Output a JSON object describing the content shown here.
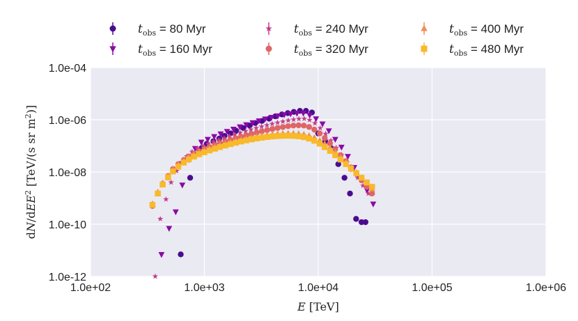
{
  "chart_data": {
    "type": "scatter",
    "xlabel": "E [TeV]",
    "ylabel": "dN/dE E^2 [TeV/(s sr m^2)]",
    "xscale": "log",
    "yscale": "log",
    "xlim": [
      100,
      1000000
    ],
    "ylim": [
      1e-12,
      0.0001
    ],
    "x_ticks": [
      "1.0e+02",
      "1.0e+03",
      "1.0e+04",
      "1.0e+05",
      "1.0e+06"
    ],
    "y_ticks": [
      "1.0e-12",
      "1.0e-10",
      "1.0e-08",
      "1.0e-06",
      "1.0e-04"
    ],
    "grid": true,
    "legend_position": "top",
    "series": [
      {
        "name": "t_obs = 80 Myr",
        "legend_value": "80 Myr",
        "color": "#4a0c8f",
        "marker": "circle",
        "x": [
          620,
          750,
          940,
          1050,
          1200,
          1350,
          1500,
          1700,
          1900,
          2200,
          2500,
          2800,
          3200,
          3700,
          4200,
          4800,
          5400,
          6100,
          6900,
          7800,
          8800,
          10000,
          11500,
          13000,
          15000,
          17000,
          19000,
          21500,
          24000,
          26000
        ],
        "y": [
          7e-12,
          6e-09,
          8e-08,
          1.2e-07,
          1.5e-07,
          1.9e-07,
          2.4e-07,
          3e-07,
          3.8e-07,
          4.8e-07,
          6e-07,
          7.5e-07,
          9e-07,
          1.1e-06,
          1.35e-06,
          1.6e-06,
          1.8e-06,
          2e-06,
          2.2e-06,
          2.2e-06,
          1.9e-06,
          3e-07,
          1.5e-07,
          8e-08,
          2e-08,
          6e-09,
          1.5e-09,
          1.6e-10,
          1.2e-10,
          1.2e-10
        ]
      },
      {
        "name": "t_obs = 160 Myr",
        "legend_value": "160 Myr",
        "color": "#8b0aa5",
        "marker": "triangle-down",
        "x": [
          420,
          490,
          560,
          640,
          730,
          830,
          940,
          1070,
          1220,
          1390,
          1580,
          1800,
          2050,
          2330,
          2650,
          3010,
          3420,
          3890,
          4420,
          5030,
          5720,
          6500,
          7390,
          8410,
          9560,
          10900,
          12400,
          14100,
          16000,
          18200,
          20700,
          23500,
          26800,
          30400
        ],
        "y": [
          7e-12,
          7e-11,
          3e-10,
          3.2e-09,
          3e-08,
          8e-08,
          1.4e-07,
          1.8e-07,
          2.3e-07,
          2.9e-07,
          3.6e-07,
          4.4e-07,
          5.4e-07,
          6.5e-07,
          7.8e-07,
          9.2e-07,
          1.08e-06,
          1.25e-06,
          1.42e-06,
          1.58e-06,
          1.7e-06,
          1.78e-06,
          1.8e-06,
          1.5e-06,
          1.1e-06,
          7e-07,
          3.8e-07,
          1.8e-07,
          9e-08,
          4e-08,
          1.5e-08,
          6e-09,
          2e-09,
          6e-10
        ]
      },
      {
        "name": "t_obs = 240 Myr",
        "legend_value": "240 Myr",
        "color": "#c43d8a",
        "marker": "star",
        "x": [
          370,
          410,
          460,
          510,
          570,
          630,
          700,
          780,
          870,
          970,
          1080,
          1200,
          1340,
          1490,
          1660,
          1850,
          2060,
          2300,
          2560,
          2850,
          3180,
          3540,
          3940,
          4390,
          4890,
          5450,
          6070,
          6760,
          7530,
          8390,
          9350,
          10400,
          11600,
          12900,
          14400,
          16000,
          17900,
          19900,
          22200,
          24700,
          27500
        ],
        "y": [
          1e-12,
          1.6e-10,
          9e-10,
          4e-09,
          1.1e-08,
          2.4e-08,
          4e-08,
          6e-08,
          8e-08,
          1e-07,
          1.2e-07,
          1.45e-07,
          1.7e-07,
          2e-07,
          2.35e-07,
          2.75e-07,
          3.2e-07,
          3.7e-07,
          4.25e-07,
          4.85e-07,
          5.5e-07,
          6.2e-07,
          7e-07,
          7.8e-07,
          8.6e-07,
          9.4e-07,
          1.02e-06,
          1.08e-06,
          1.1e-06,
          9.8e-07,
          7.4e-07,
          4.8e-07,
          2.9e-07,
          1.6e-07,
          8.5e-08,
          4.5e-08,
          2.3e-08,
          1.2e-08,
          6e-09,
          3e-09,
          1.5e-09
        ]
      },
      {
        "name": "t_obs = 320 Myr",
        "legend_value": "320 Myr",
        "color": "#df6566",
        "marker": "circle",
        "x": [
          350,
          390,
          430,
          480,
          530,
          590,
          660,
          730,
          810,
          900,
          1000,
          1110,
          1240,
          1370,
          1530,
          1700,
          1890,
          2100,
          2330,
          2590,
          2880,
          3200,
          3560,
          3960,
          4400,
          4890,
          5440,
          6050,
          6720,
          7470,
          8310,
          9240,
          10300,
          11400,
          12700,
          14100,
          15700,
          17500,
          19400,
          21600,
          24000,
          26700,
          29700
        ],
        "y": [
          5e-10,
          1.5e-09,
          3.5e-09,
          7e-09,
          1.3e-08,
          2e-08,
          2.9e-08,
          3.9e-08,
          5e-08,
          6.2e-08,
          7.5e-08,
          9e-08,
          1.07e-07,
          1.26e-07,
          1.47e-07,
          1.7e-07,
          1.96e-07,
          2.24e-07,
          2.55e-07,
          2.88e-07,
          3.24e-07,
          3.62e-07,
          4.02e-07,
          4.44e-07,
          4.86e-07,
          5.28e-07,
          5.68e-07,
          6e-07,
          6.15e-07,
          6e-07,
          5.3e-07,
          4.2e-07,
          3e-07,
          2e-07,
          1.25e-07,
          7.5e-08,
          4.4e-08,
          2.6e-08,
          1.5e-08,
          8.5e-09,
          4.8e-09,
          2.7e-09,
          1.5e-09
        ]
      },
      {
        "name": "t_obs = 400 Myr",
        "legend_value": "400 Myr",
        "color": "#f08f55",
        "marker": "triangle-up",
        "x": [
          350,
          390,
          430,
          480,
          530,
          590,
          660,
          730,
          810,
          900,
          1000,
          1110,
          1240,
          1370,
          1530,
          1700,
          1890,
          2100,
          2330,
          2590,
          2880,
          3200,
          3560,
          3960,
          4400,
          4890,
          5440,
          6050,
          6720,
          7470,
          8310,
          9240,
          10300,
          11400,
          12700,
          14100,
          15700,
          17500,
          19400,
          21600,
          24000,
          26700,
          29700
        ],
        "y": [
          6e-10,
          1.7e-09,
          3.8e-09,
          7.2e-09,
          1.25e-08,
          1.9e-08,
          2.7e-08,
          3.6e-08,
          4.6e-08,
          5.6e-08,
          6.7e-08,
          7.9e-08,
          9.2e-08,
          1.06e-07,
          1.21e-07,
          1.37e-07,
          1.54e-07,
          1.72e-07,
          1.9e-07,
          2.08e-07,
          2.26e-07,
          2.44e-07,
          2.6e-07,
          2.75e-07,
          2.87e-07,
          2.96e-07,
          3.01e-07,
          3e-07,
          2.92e-07,
          2.75e-07,
          2.45e-07,
          2.05e-07,
          1.62e-07,
          1.2e-07,
          8.5e-08,
          5.7e-08,
          3.7e-08,
          2.4e-08,
          1.5e-08,
          9.5e-09,
          6e-09,
          3.7e-09,
          2.2e-09
        ]
      },
      {
        "name": "t_obs = 480 Myr",
        "legend_value": "480 Myr",
        "color": "#f8b92b",
        "marker": "square",
        "x": [
          350,
          390,
          430,
          480,
          530,
          590,
          660,
          730,
          810,
          900,
          1000,
          1110,
          1240,
          1370,
          1530,
          1700,
          1890,
          2100,
          2330,
          2590,
          2880,
          3200,
          3560,
          3960,
          4400,
          4890,
          5440,
          6050,
          6720,
          7470,
          8310,
          9240,
          10300,
          11400,
          12700,
          14100,
          15700,
          17500,
          19400,
          21600,
          24000,
          26700,
          29700
        ],
        "y": [
          5.5e-10,
          1.5e-09,
          3.3e-09,
          6.2e-09,
          1.05e-08,
          1.6e-08,
          2.3e-08,
          3.05e-08,
          3.9e-08,
          4.8e-08,
          5.7e-08,
          6.7e-08,
          7.8e-08,
          9e-08,
          1.03e-07,
          1.17e-07,
          1.32e-07,
          1.47e-07,
          1.62e-07,
          1.77e-07,
          1.92e-07,
          2.06e-07,
          2.19e-07,
          2.3e-07,
          2.38e-07,
          2.43e-07,
          2.45e-07,
          2.42e-07,
          2.33e-07,
          2.16e-07,
          1.9e-07,
          1.57e-07,
          1.22e-07,
          9e-08,
          6.4e-08,
          4.4e-08,
          3e-08,
          2e-08,
          1.35e-08,
          9e-09,
          6e-09,
          4e-09,
          2.7e-09
        ]
      }
    ]
  }
}
